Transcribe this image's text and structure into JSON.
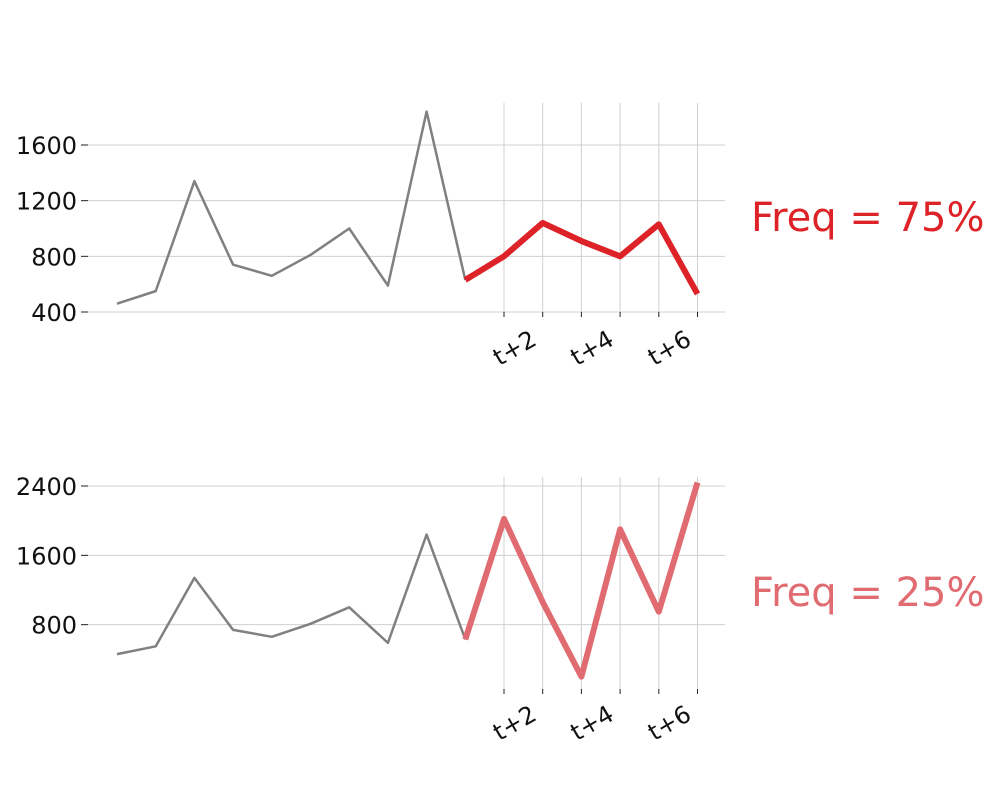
{
  "chart_data": [
    {
      "type": "line",
      "history": {
        "color": "#808080",
        "values": [
          460,
          550,
          1340,
          740,
          660,
          810,
          1000,
          590,
          1840,
          630
        ]
      },
      "forecast": {
        "color": "#dd2328",
        "values": [
          630,
          800,
          1040,
          910,
          800,
          1030,
          530
        ]
      },
      "x_tick_labels": [
        "t+2",
        "t+4",
        "t+6"
      ],
      "y_ticks": [
        400,
        800,
        1200,
        1600
      ],
      "y_tick_labels": [
        "400",
        "800",
        "1200",
        "1600"
      ],
      "ylim": [
        400,
        1900
      ],
      "grid": true,
      "annotation": "Freq = 75%"
    },
    {
      "type": "line",
      "history": {
        "color": "#808080",
        "values": [
          460,
          550,
          1340,
          740,
          660,
          810,
          1000,
          590,
          1840,
          630
        ]
      },
      "forecast": {
        "color": "#e06c72",
        "values": [
          630,
          2020,
          1060,
          200,
          1900,
          950,
          2440
        ]
      },
      "x_tick_labels": [
        "t+2",
        "t+4",
        "t+6"
      ],
      "y_ticks": [
        800,
        1600,
        2400
      ],
      "y_tick_labels": [
        "800",
        "1600",
        "2400"
      ],
      "ylim": [
        0,
        2520
      ],
      "grid": true,
      "annotation": "Freq = 25%"
    }
  ]
}
